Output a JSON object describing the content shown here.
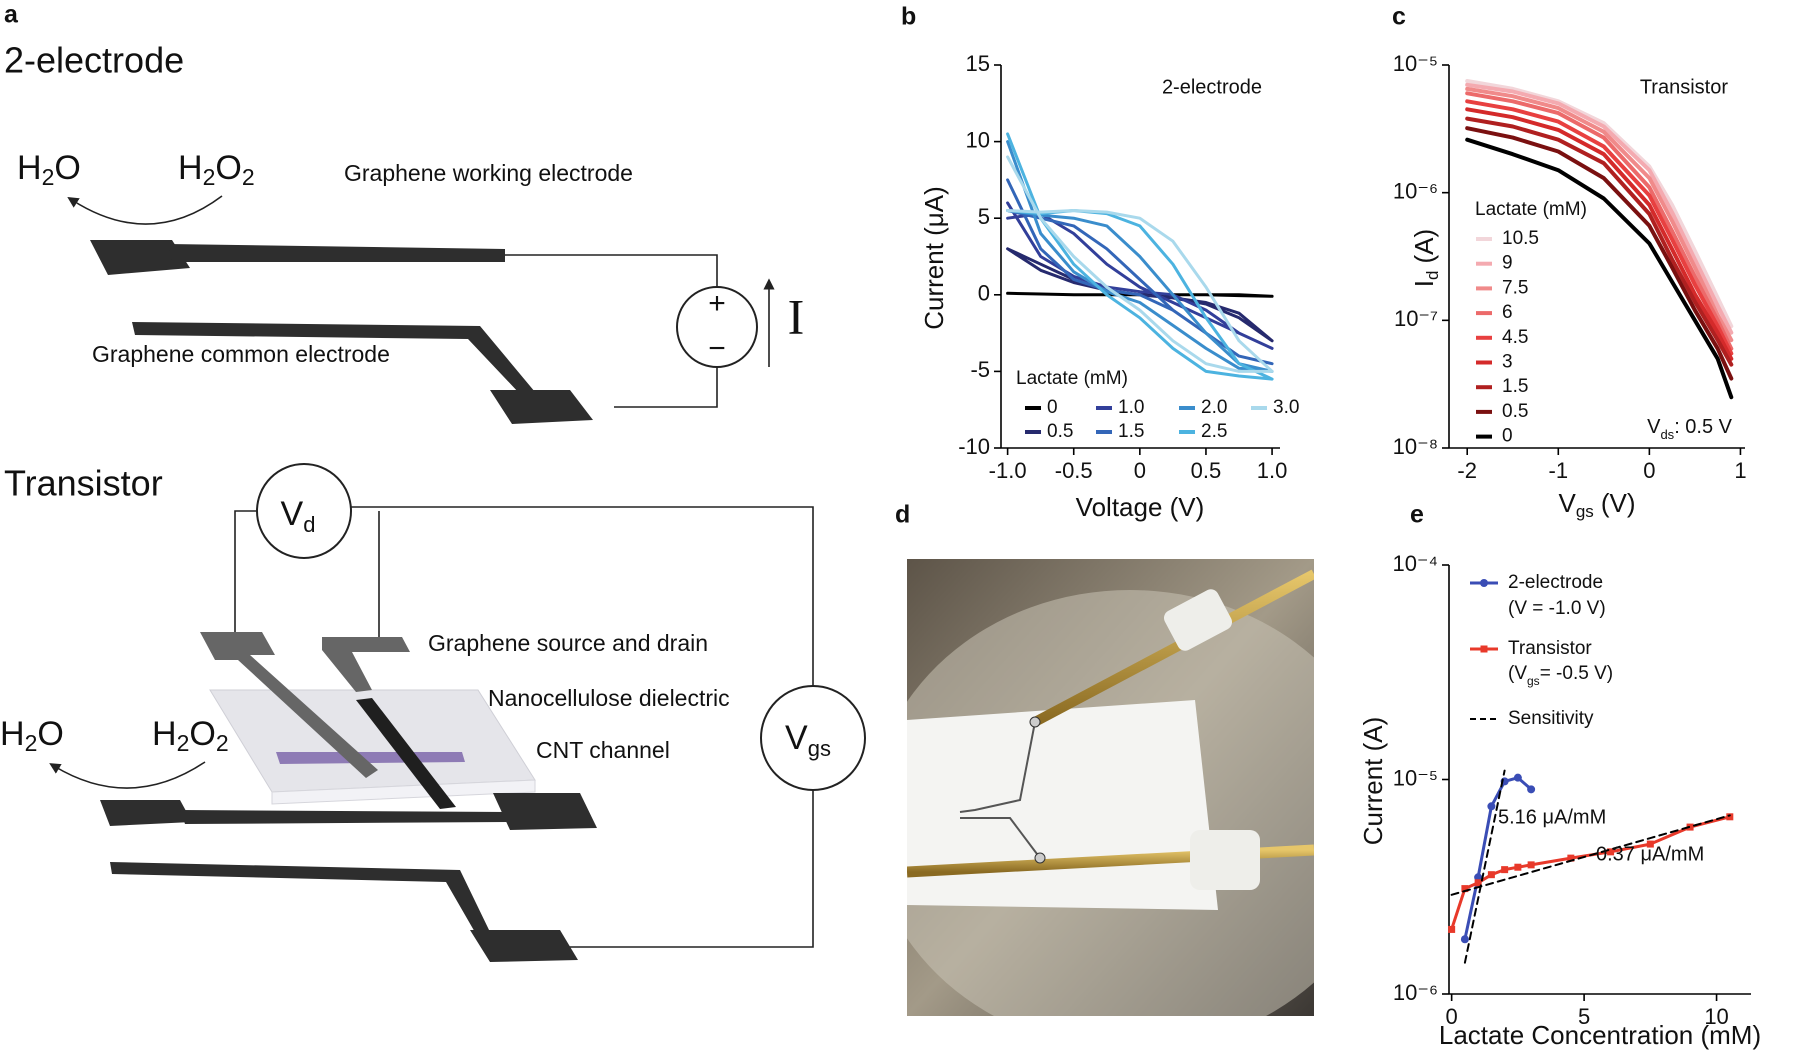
{
  "panel_labels": [
    "a",
    "b",
    "c",
    "d",
    "e"
  ],
  "diagram": {
    "two_electrode": {
      "title": "2-electrode",
      "h2o": [
        "H",
        "2",
        "O"
      ],
      "h2o2": [
        "H",
        "2",
        "O",
        "2"
      ],
      "working_electrode": "Graphene working electrode",
      "common_electrode": "Graphene common electrode",
      "plus": "+",
      "minus": "−",
      "current": "I"
    },
    "transistor": {
      "title": "Transistor",
      "vd": [
        "V",
        "d"
      ],
      "source_drain": "Graphene source and drain",
      "dielectric": "Nanocellulose dielectric",
      "channel": "CNT channel",
      "vgs": [
        "V",
        "gs"
      ],
      "h2o": [
        "H",
        "2",
        "O"
      ],
      "h2o2": [
        "H",
        "2",
        "O",
        "2"
      ]
    }
  },
  "chart_data": [
    {
      "type": "line",
      "annotation": "2-electrode",
      "x_label": "Voltage (V)",
      "y_label": "Current (μA)",
      "legend_title": "Lactate (mM)",
      "x": [
        -1,
        -0.75,
        -0.5,
        -0.25,
        0,
        0.25,
        0.5,
        0.75,
        1,
        0.75,
        0.5,
        0.25,
        0,
        -0.25,
        -0.5,
        -0.75,
        -1
      ],
      "xlim": [
        -1.05,
        1.06
      ],
      "xticks": [
        {
          "value": -1,
          "label": "-1.0"
        },
        -0.5,
        0,
        0.5,
        {
          "value": 1,
          "label": "1.0"
        }
      ],
      "ylim": [
        -10,
        15
      ],
      "yticks": [
        -10,
        -5,
        0,
        5,
        10,
        15
      ],
      "series": [
        {
          "name": "0",
          "color": "#000000",
          "values": [
            0.1,
            0.05,
            0,
            0,
            0,
            0,
            0,
            0,
            -0.1,
            -0.05,
            0,
            0,
            0,
            0,
            0,
            0.05,
            0.1
          ]
        },
        {
          "name": "0.5",
          "color": "#262a6e",
          "values": [
            3,
            2,
            1,
            0.3,
            0,
            -0.2,
            -0.5,
            -1.2,
            -3,
            -1.5,
            -0.6,
            -0.2,
            0,
            0.3,
            0.8,
            1.6,
            3
          ]
        },
        {
          "name": "1.0",
          "color": "#323f9a",
          "values": [
            5,
            5.3,
            4,
            2,
            0.5,
            -0.5,
            -1.5,
            -2.5,
            -3.5,
            -2.5,
            -1,
            0,
            0.2,
            0.5,
            1.2,
            2.5,
            6
          ]
        },
        {
          "name": "1.5",
          "color": "#3366b8",
          "values": [
            5.5,
            5,
            4.5,
            3,
            1,
            -1,
            -2.5,
            -4,
            -4.5,
            -4,
            -2.5,
            -1,
            0,
            0.3,
            1,
            3,
            7.5
          ]
        },
        {
          "name": "2.0",
          "color": "#3a8dcc",
          "values": [
            5.5,
            5.2,
            5,
            4.5,
            2.5,
            0,
            -2.5,
            -4.5,
            -5,
            -4.8,
            -3.5,
            -2,
            -0.5,
            0.2,
            1.5,
            4,
            10
          ]
        },
        {
          "name": "2.5",
          "color": "#4cb3e0",
          "values": [
            5.5,
            5.3,
            5.5,
            5.3,
            4.5,
            2,
            -1.5,
            -4.5,
            -5.5,
            -5.3,
            -5,
            -3.5,
            -1.5,
            0,
            2,
            5,
            10.5
          ]
        },
        {
          "name": "3.0",
          "color": "#a9d9ec",
          "values": [
            5.5,
            5.4,
            5.5,
            5.4,
            5,
            3.5,
            0.5,
            -3,
            -5,
            -5,
            -4.5,
            -3,
            -1,
            0.5,
            2.5,
            5,
            9
          ]
        }
      ]
    },
    {
      "type": "line",
      "log_y": true,
      "annotation": "Transistor",
      "note": {
        "text": "V",
        "sub": "ds",
        "rest": ": 0.5 V"
      },
      "x_label": {
        "text": "V",
        "sub": "gs",
        "unit": "(V)"
      },
      "y_label": {
        "text": "I",
        "sub": "d",
        "unit": "(A)"
      },
      "legend_title": "Lactate (mM)",
      "x": [
        -2,
        -1.5,
        -1,
        -0.5,
        0,
        0.25,
        0.5,
        0.75,
        0.9
      ],
      "xlim": [
        -2.2,
        1.05
      ],
      "xticks": [
        -2,
        -1,
        0,
        1
      ],
      "ylim": [
        1e-08,
        1e-05
      ],
      "yticks": [
        {
          "value": 1e-08,
          "label": "10⁻⁸"
        },
        {
          "value": 1e-07,
          "label": "10⁻⁷"
        },
        {
          "value": 1e-06,
          "label": "10⁻⁶"
        },
        {
          "value": 1e-05,
          "label": "10⁻⁵"
        }
      ],
      "series": [
        {
          "name": "10.5",
          "color": "#f2d6da",
          "values": [
            7.5e-06,
            6.5e-06,
            5.2e-06,
            3.5e-06,
            1.6e-06,
            8e-07,
            3.5e-07,
            1.5e-07,
            9e-08
          ]
        },
        {
          "name": "9",
          "color": "#f4aab0",
          "values": [
            7e-06,
            6.2e-06,
            5e-06,
            3.3e-06,
            1.5e-06,
            7e-07,
            3e-07,
            1.3e-07,
            8e-08
          ]
        },
        {
          "name": "7.5",
          "color": "#f08a8a",
          "values": [
            6.5e-06,
            5.7e-06,
            4.6e-06,
            3e-06,
            1.3e-06,
            6e-07,
            2.6e-07,
            1.1e-07,
            7e-08
          ]
        },
        {
          "name": "6",
          "color": "#ec6a6a",
          "values": [
            6e-06,
            5.2e-06,
            4.2e-06,
            2.7e-06,
            1.1e-06,
            5e-07,
            2.2e-07,
            1e-07,
            6e-08
          ]
        },
        {
          "name": "4.5",
          "color": "#e84040",
          "values": [
            5.2e-06,
            4.5e-06,
            3.6e-06,
            2.3e-06,
            9.5e-07,
            4.3e-07,
            1.9e-07,
            9e-08,
            5.5e-08
          ]
        },
        {
          "name": "3",
          "color": "#d42a2a",
          "values": [
            4.5e-06,
            3.9e-06,
            3.1e-06,
            2e-06,
            8e-07,
            3.6e-07,
            1.6e-07,
            8e-08,
            5e-08
          ]
        },
        {
          "name": "1.5",
          "color": "#b02020",
          "values": [
            3.8e-06,
            3.3e-06,
            2.6e-06,
            1.7e-06,
            6.8e-07,
            3e-07,
            1.4e-07,
            7e-08,
            4.5e-08
          ]
        },
        {
          "name": "0.5",
          "color": "#7a1010",
          "values": [
            3.2e-06,
            2.7e-06,
            2.1e-06,
            1.3e-06,
            5.5e-07,
            2.6e-07,
            1.2e-07,
            6e-08,
            3.5e-08
          ]
        },
        {
          "name": "0",
          "color": "#000000",
          "values": [
            2.6e-06,
            2e-06,
            1.5e-06,
            9e-07,
            4e-07,
            2e-07,
            1e-07,
            5e-08,
            2.5e-08
          ]
        }
      ]
    },
    {
      "type": "line",
      "log_y": true,
      "x_label": "Lactate Concentration (mM)",
      "y_label": "Current (A)",
      "xlim": [
        -0.1,
        11.3
      ],
      "xticks": [
        0,
        5,
        10
      ],
      "ylim": [
        1e-06,
        0.0001
      ],
      "yticks": [
        {
          "value": 1e-06,
          "label": "10⁻⁶"
        },
        {
          "value": 1e-05,
          "label": "10⁻⁵"
        },
        {
          "value": 0.0001,
          "label": "10⁻⁴"
        }
      ],
      "legend_notes": [
        "(V = -1.0 V)",
        {
          "pre": "(V",
          "sub": "gs",
          "rest": "= -0.5 V)"
        }
      ],
      "annotations": [
        "5.16 μA/mM",
        "0.37 μA/mM"
      ],
      "series": [
        {
          "name": "2-electrode",
          "color": "#3a4db5",
          "marker": "circle",
          "x": [
            0.5,
            1,
            1.5,
            2,
            2.5,
            3
          ],
          "values": [
            1.8e-06,
            3.5e-06,
            7.5e-06,
            9.8e-06,
            1.02e-05,
            9e-06
          ]
        },
        {
          "name": "Transistor",
          "color": "#e8392a",
          "marker": "square",
          "x": [
            0,
            0.5,
            1,
            1.5,
            2,
            2.5,
            3,
            4.5,
            6,
            7.5,
            9,
            10.5
          ],
          "values": [
            2e-06,
            3.1e-06,
            3.3e-06,
            3.6e-06,
            3.8e-06,
            3.9e-06,
            4e-06,
            4.3e-06,
            4.6e-06,
            5e-06,
            6e-06,
            6.7e-06
          ]
        },
        {
          "name": "Sensitivity",
          "color": "#000000",
          "dash": true,
          "x": [
            0.5,
            2,
            null,
            0,
            10.5
          ],
          "values": [
            1.4e-06,
            1.1e-05,
            null,
            2.9e-06,
            6.8e-06
          ]
        }
      ]
    }
  ]
}
